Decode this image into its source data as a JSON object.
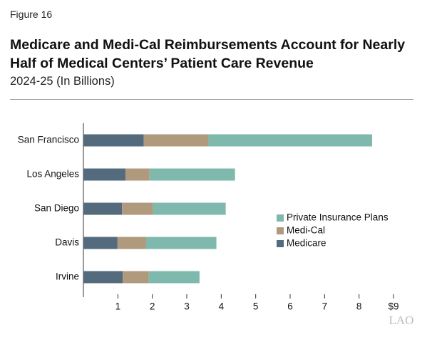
{
  "figure_label": "Figure 16",
  "logo": "LAO",
  "chart_data": {
    "type": "stacked-barh",
    "title": "Medicare and Medi-Cal Reimbursements Account for Nearly Half of Medical Centers’ Patient Care Revenue",
    "subtitle": "2024-25 (In Billions)",
    "categories": [
      "San Francisco",
      "Los Angeles",
      "San Diego",
      "Davis",
      "Irvine"
    ],
    "series": [
      {
        "name": "Medicare",
        "color": "#546b7e",
        "values": [
          1.75,
          1.22,
          1.12,
          0.99,
          1.14
        ]
      },
      {
        "name": "Medi-Cal",
        "color": "#b09a7e",
        "values": [
          1.88,
          0.7,
          0.9,
          0.83,
          0.76
        ]
      },
      {
        "name": "Private Insurance Plans",
        "color": "#7fb8ad",
        "values": [
          4.75,
          2.48,
          2.11,
          2.04,
          1.47
        ]
      }
    ],
    "xlim": [
      0,
      9
    ],
    "xticks": [
      1,
      2,
      3,
      4,
      5,
      6,
      7,
      8,
      {
        "value": 9,
        "label": "$9"
      }
    ],
    "legend": "right"
  }
}
